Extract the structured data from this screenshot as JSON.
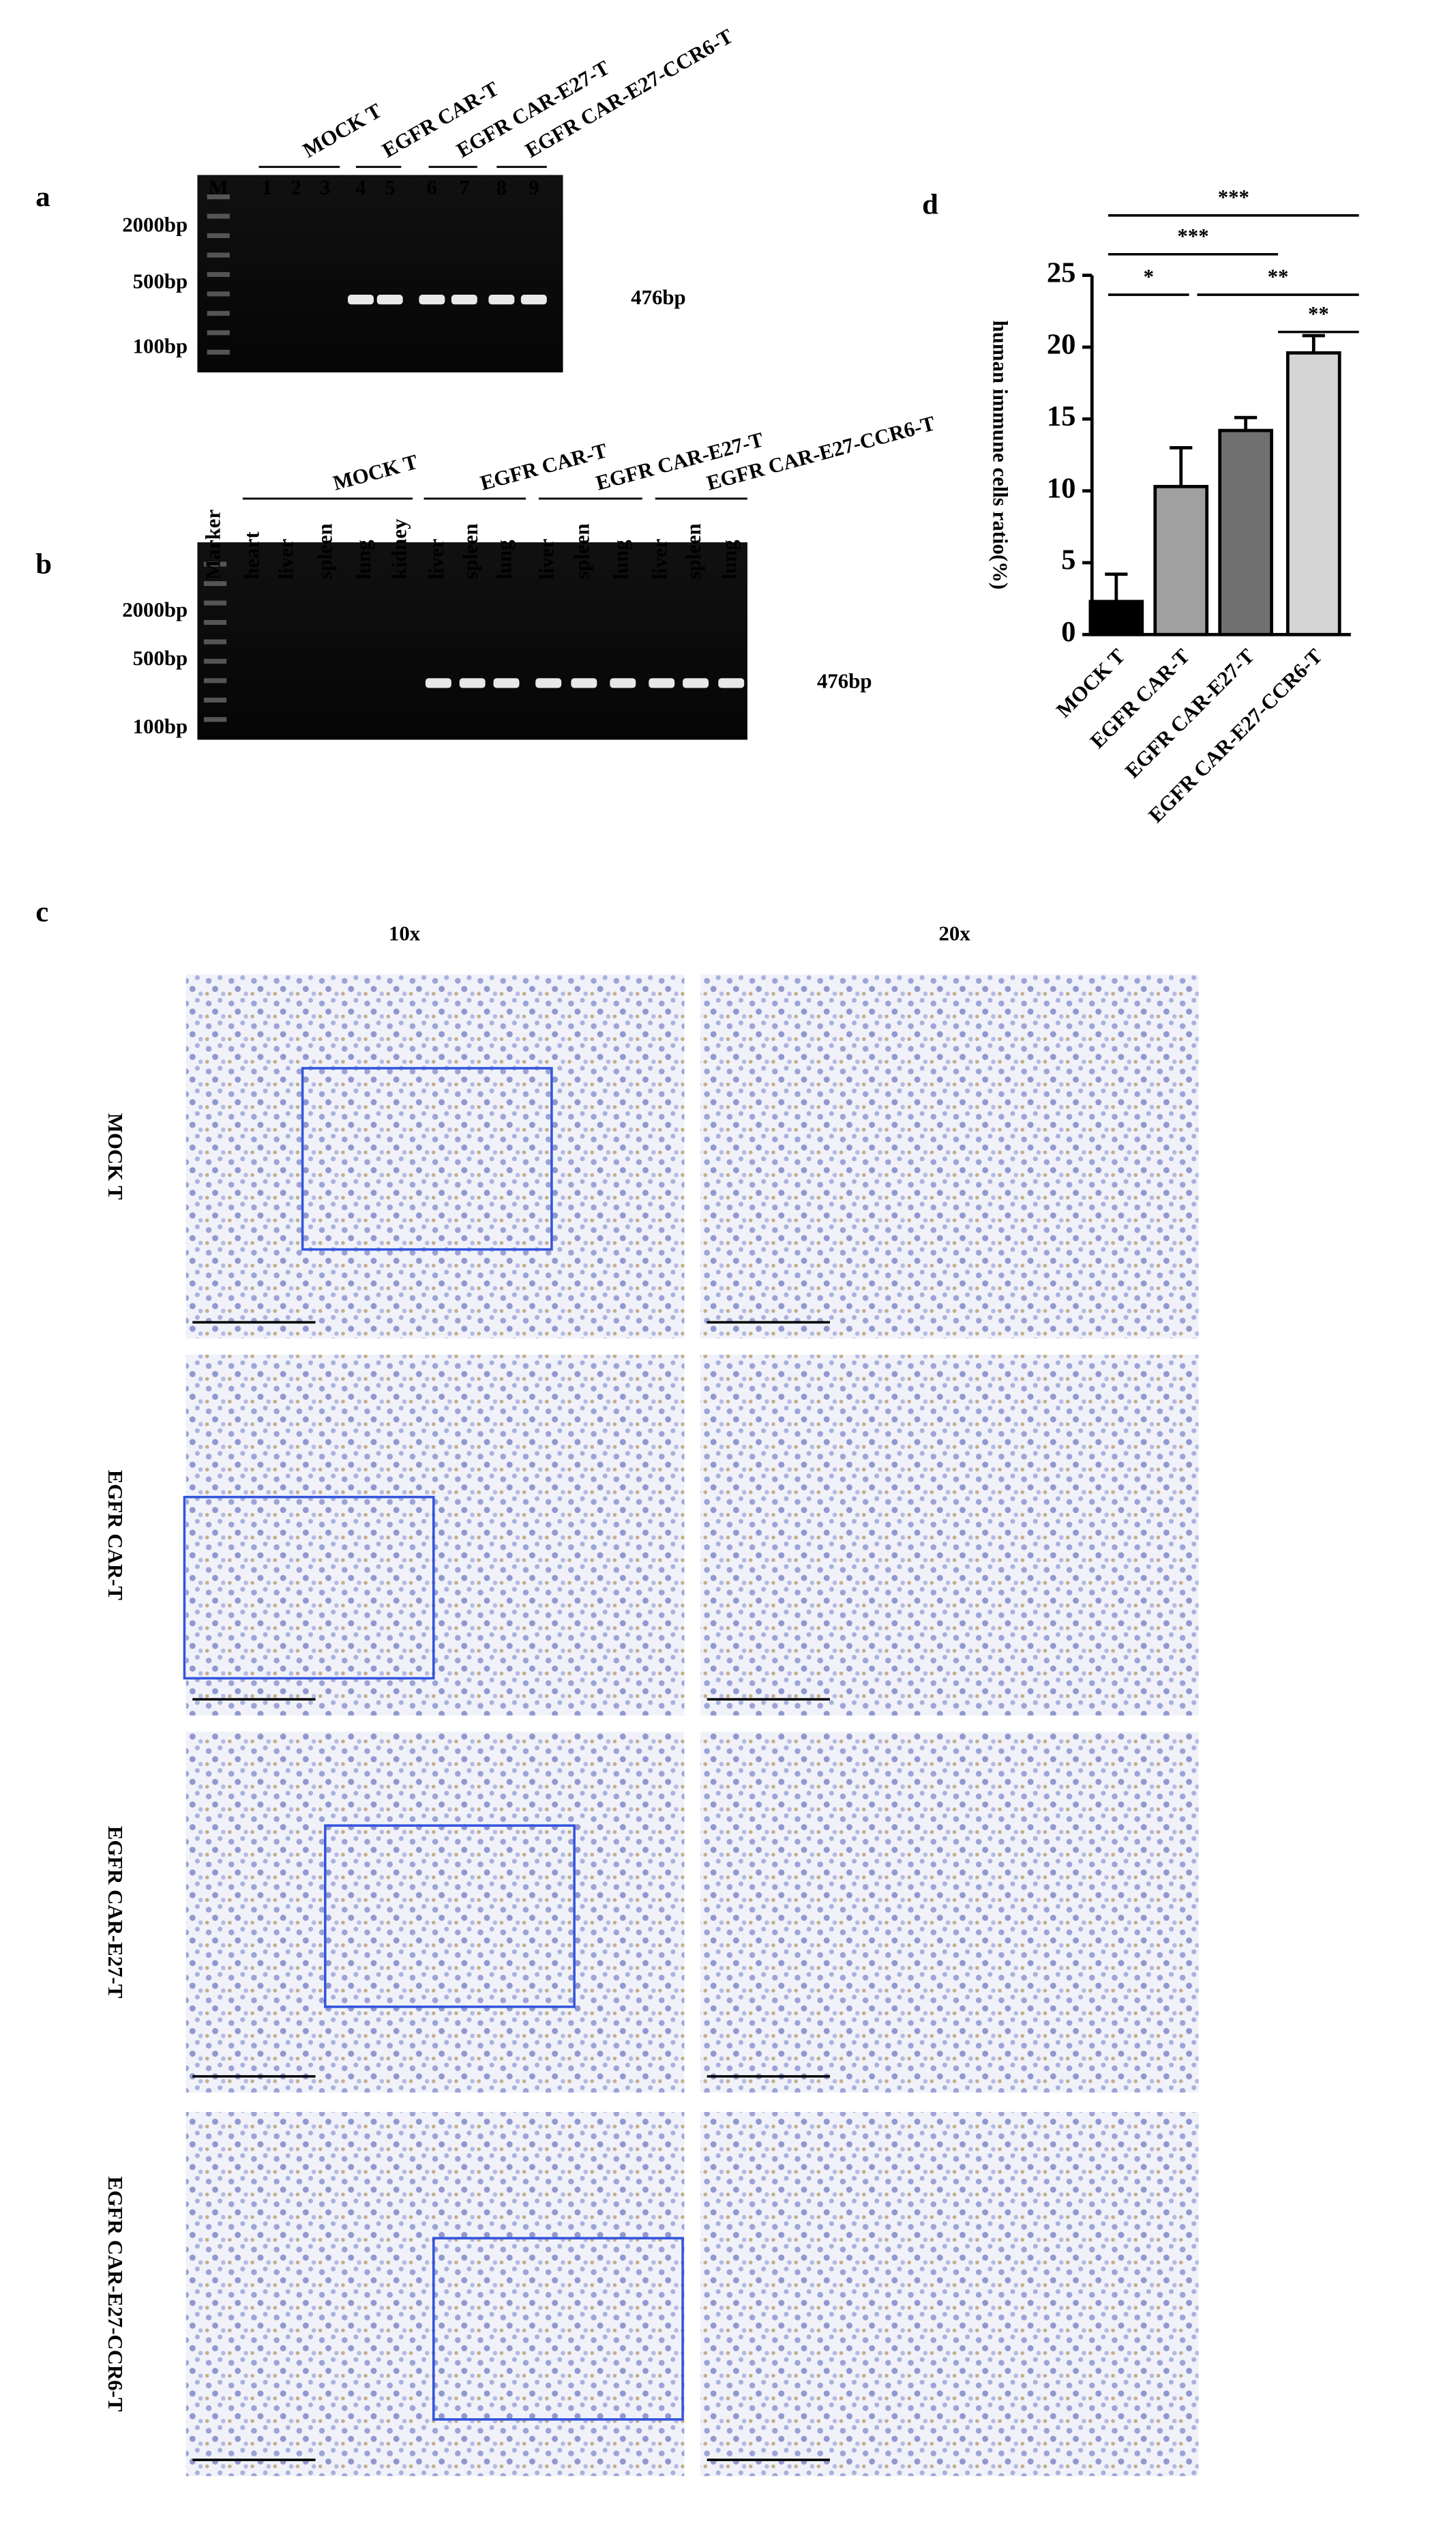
{
  "panel_a": {
    "label": "a",
    "lanes": [
      "M",
      "1",
      "2",
      "3",
      "4",
      "5",
      "6",
      "7",
      "8",
      "9"
    ],
    "groups": [
      "MOCK T",
      "EGFR CAR-T",
      "EGFR CAR-E27-T",
      "EGFR CAR-E27-CCR6-T"
    ],
    "size_markers": [
      "2000bp",
      "500bp",
      "100bp"
    ],
    "band_size": "476bp"
  },
  "panel_b": {
    "label": "b",
    "lanes": [
      "Marker",
      "heart",
      "liver",
      "spleen",
      "lung",
      "kidney",
      "liver",
      "spleen",
      "lung",
      "liver",
      "spleen",
      "lung",
      "liver",
      "spleen",
      "lung"
    ],
    "groups": [
      "MOCK T",
      "EGFR CAR-T",
      "EGFR CAR-E27-T",
      "EGFR CAR-E27-CCR6-T"
    ],
    "size_markers": [
      "2000bp",
      "500bp",
      "100bp"
    ],
    "band_size": "476bp"
  },
  "chart_data": {
    "type": "bar",
    "label": "d",
    "categories": [
      "MOCK T",
      "EGFR CAR-T",
      "EGFR CAR-E27-T",
      "EGFR CAR-E27-CCR6-T"
    ],
    "values": [
      2.3,
      10.3,
      14.2,
      19.6
    ],
    "errors": [
      1.9,
      2.7,
      0.9,
      1.2
    ],
    "colors": [
      "#000000",
      "#a0a0a0",
      "#707070",
      "#d4d4d4"
    ],
    "ylabel": "human immune cells ratio(%)",
    "ylim": [
      0,
      25
    ],
    "yticks": [
      0,
      5,
      10,
      15,
      20,
      25
    ],
    "annotations": [
      "***",
      "***",
      "*",
      "**",
      "**"
    ]
  },
  "panel_c": {
    "label": "c",
    "columns": [
      "10x",
      "20x"
    ],
    "rows": [
      "MOCK T",
      "EGFR CAR-T",
      "EGFR CAR-E27-T",
      "EGFR CAR-E27-CCR6-T"
    ]
  }
}
